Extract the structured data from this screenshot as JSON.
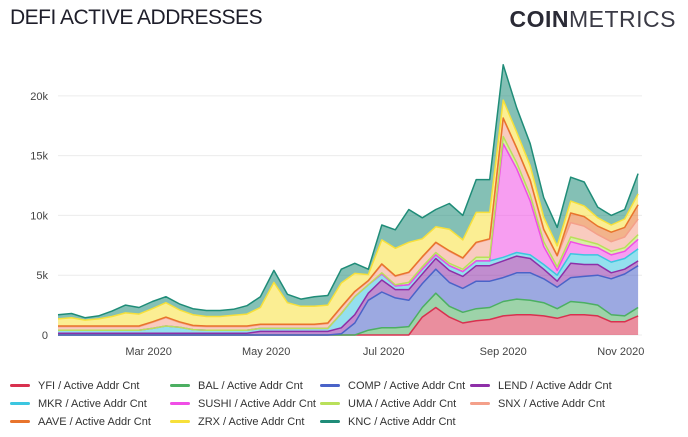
{
  "title": "DEFI ACTIVE ADDRESSES",
  "logo": {
    "bold": "COIN",
    "light": "METRICS"
  },
  "chart_data": {
    "type": "area",
    "stacked": true,
    "title": "DEFI ACTIVE ADDRESSES",
    "xlabel": "",
    "ylabel": "",
    "xlim": [
      "2020-01-14",
      "2020-11-12"
    ],
    "ylim": [
      0,
      23000
    ],
    "x_ticks": [
      {
        "date": "2020-03-01",
        "label": "Mar 2020"
      },
      {
        "date": "2020-05-01",
        "label": "May 2020"
      },
      {
        "date": "2020-07-01",
        "label": "Jul 2020"
      },
      {
        "date": "2020-09-01",
        "label": "Sep 2020"
      },
      {
        "date": "2020-11-01",
        "label": "Nov 2020"
      }
    ],
    "y_ticks": [
      {
        "value": 0,
        "label": "0"
      },
      {
        "value": 5000,
        "label": "5k"
      },
      {
        "value": 10000,
        "label": "10k"
      },
      {
        "value": 15000,
        "label": "15k"
      },
      {
        "value": 20000,
        "label": "20k"
      }
    ],
    "grid": "horizontal",
    "legend_placement": "bottom",
    "x": [
      "2020-01-14",
      "2020-01-21",
      "2020-01-28",
      "2020-02-04",
      "2020-02-11",
      "2020-02-18",
      "2020-02-25",
      "2020-03-03",
      "2020-03-10",
      "2020-03-17",
      "2020-03-24",
      "2020-03-31",
      "2020-04-07",
      "2020-04-14",
      "2020-04-21",
      "2020-04-28",
      "2020-05-05",
      "2020-05-12",
      "2020-05-19",
      "2020-05-26",
      "2020-06-02",
      "2020-06-09",
      "2020-06-16",
      "2020-06-23",
      "2020-06-30",
      "2020-07-07",
      "2020-07-14",
      "2020-07-21",
      "2020-07-28",
      "2020-08-04",
      "2020-08-11",
      "2020-08-18",
      "2020-08-25",
      "2020-09-01",
      "2020-09-08",
      "2020-09-15",
      "2020-09-22",
      "2020-09-29",
      "2020-10-06",
      "2020-10-13",
      "2020-10-20",
      "2020-10-27",
      "2020-11-03",
      "2020-11-10"
    ],
    "series": [
      {
        "name": "YFI / Active Addr Cnt",
        "color": "#d8314f",
        "values": [
          0,
          0,
          0,
          0,
          0,
          0,
          0,
          0,
          0,
          0,
          0,
          0,
          0,
          0,
          0,
          0,
          0,
          0,
          0,
          0,
          0,
          0,
          0,
          0,
          0,
          0,
          0,
          1500,
          2300,
          1500,
          1000,
          1200,
          1300,
          1600,
          1700,
          1700,
          1600,
          1400,
          1700,
          1700,
          1600,
          1100,
          1100,
          1600
        ]
      },
      {
        "name": "BAL / Active Addr Cnt",
        "color": "#4caf62",
        "values": [
          0,
          0,
          0,
          0,
          0,
          0,
          0,
          0,
          0,
          0,
          0,
          0,
          0,
          0,
          0,
          0,
          0,
          0,
          0,
          0,
          0,
          0,
          0,
          400,
          600,
          600,
          700,
          800,
          1200,
          900,
          900,
          1000,
          1000,
          1200,
          1300,
          1200,
          1100,
          800,
          1100,
          1000,
          900,
          600,
          500,
          700
        ]
      },
      {
        "name": "COMP / Active Addr Cnt",
        "color": "#4a63c8",
        "values": [
          0,
          0,
          0,
          0,
          0,
          0,
          0,
          0,
          0,
          0,
          0,
          0,
          0,
          0,
          0,
          0,
          0,
          0,
          0,
          0,
          0,
          100,
          1000,
          2500,
          3000,
          2500,
          2200,
          2000,
          2000,
          2000,
          2000,
          2300,
          2200,
          2000,
          2200,
          2300,
          2000,
          1800,
          2000,
          2200,
          2500,
          3000,
          3500,
          3500
        ]
      },
      {
        "name": "LEND / Active Addr Cnt",
        "color": "#8e2fa8",
        "values": [
          150,
          150,
          150,
          150,
          150,
          150,
          150,
          150,
          150,
          150,
          150,
          150,
          150,
          150,
          150,
          300,
          300,
          300,
          300,
          300,
          300,
          500,
          700,
          600,
          1000,
          700,
          900,
          800,
          900,
          1000,
          1000,
          1300,
          1300,
          1400,
          1400,
          1200,
          800,
          500,
          1200,
          1000,
          900,
          500,
          400,
          400
        ]
      },
      {
        "name": "MKR / Active Addr Cnt",
        "color": "#3cc6e0",
        "values": [
          250,
          250,
          250,
          250,
          250,
          250,
          250,
          400,
          600,
          500,
          300,
          250,
          250,
          250,
          250,
          250,
          250,
          250,
          250,
          250,
          250,
          1200,
          1500,
          700,
          500,
          300,
          400,
          400,
          300,
          400,
          400,
          400,
          400,
          300,
          300,
          300,
          400,
          500,
          800,
          800,
          800,
          900,
          900,
          1000
        ]
      },
      {
        "name": "SUSHI / Active Addr Cnt",
        "color": "#f04ee6",
        "values": [
          0,
          0,
          0,
          0,
          0,
          0,
          0,
          0,
          0,
          0,
          0,
          0,
          0,
          0,
          0,
          0,
          0,
          0,
          0,
          0,
          0,
          0,
          0,
          0,
          0,
          0,
          0,
          0,
          0,
          0,
          0,
          0,
          0,
          9500,
          7000,
          4500,
          1500,
          400,
          1000,
          800,
          600,
          600,
          600,
          800
        ]
      },
      {
        "name": "UMA / Active Addr Cnt",
        "color": "#b9e05a",
        "values": [
          0,
          0,
          0,
          0,
          0,
          0,
          0,
          0,
          0,
          0,
          0,
          0,
          0,
          0,
          0,
          0,
          0,
          0,
          0,
          0,
          0,
          0,
          0,
          0,
          100,
          100,
          200,
          200,
          200,
          200,
          200,
          300,
          300,
          600,
          500,
          500,
          400,
          300,
          400,
          400,
          300,
          300,
          300,
          400
        ]
      },
      {
        "name": "SNX / Active Addr Cnt",
        "color": "#f4a08a",
        "values": [
          300,
          300,
          300,
          300,
          300,
          300,
          300,
          500,
          700,
          400,
          300,
          300,
          300,
          300,
          300,
          300,
          300,
          300,
          300,
          300,
          400,
          500,
          400,
          300,
          700,
          700,
          800,
          800,
          800,
          1000,
          900,
          1200,
          1500,
          1500,
          1200,
          1200,
          1000,
          900,
          1200,
          1200,
          800,
          800,
          900,
          1300
        ]
      },
      {
        "name": "AAVE / Active Addr Cnt",
        "color": "#e8742c",
        "values": [
          50,
          50,
          50,
          50,
          50,
          50,
          50,
          50,
          50,
          50,
          50,
          50,
          50,
          50,
          50,
          50,
          50,
          50,
          50,
          50,
          50,
          50,
          50,
          50,
          50,
          50,
          50,
          50,
          50,
          50,
          50,
          50,
          50,
          50,
          50,
          50,
          50,
          50,
          800,
          800,
          700,
          800,
          800,
          1200
        ]
      },
      {
        "name": "ZRX / Active Addr Cnt",
        "color": "#f7e03a",
        "values": [
          600,
          700,
          500,
          600,
          800,
          1100,
          1000,
          1100,
          1200,
          1000,
          900,
          800,
          800,
          900,
          1000,
          1400,
          3500,
          1800,
          1500,
          1500,
          1500,
          2000,
          1500,
          500,
          2000,
          2300,
          2500,
          1500,
          1300,
          1800,
          1500,
          2500,
          2200,
          1500,
          1300,
          1200,
          1000,
          800,
          1000,
          900,
          700,
          600,
          700,
          900
        ]
      },
      {
        "name": "KNC / Active Addr Cnt",
        "color": "#1f8c78",
        "values": [
          350,
          350,
          200,
          250,
          450,
          650,
          550,
          600,
          500,
          500,
          500,
          500,
          500,
          500,
          700,
          900,
          1000,
          700,
          600,
          800,
          800,
          1150,
          850,
          450,
          1250,
          1550,
          2750,
          1750,
          1450,
          2150,
          2050,
          2750,
          2750,
          2950,
          2050,
          1850,
          1650,
          1550,
          2000,
          2000,
          900,
          800,
          800,
          1700
        ]
      }
    ]
  }
}
